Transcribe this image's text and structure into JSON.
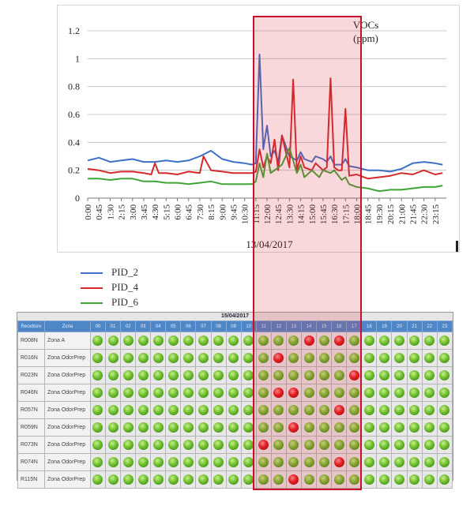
{
  "chart_data": {
    "type": "line",
    "title": "VOCs",
    "title_unit": "(ppm)",
    "xlabel": "13/04/2017",
    "ylabel": "",
    "ylim": [
      0,
      1.2
    ],
    "yticks": [
      "0",
      "0.2",
      "0.4",
      "0.6",
      "0.8",
      "1",
      "1.2"
    ],
    "x_tick_labels": [
      "0:00",
      "0:45",
      "1:30",
      "2:15",
      "3:00",
      "3:45",
      "4:30",
      "5:15",
      "6:00",
      "6:45",
      "7:30",
      "8:15",
      "9:00",
      "9:45",
      "10:30",
      "11:15",
      "12:00",
      "12:45",
      "13:30",
      "14:15",
      "15:00",
      "15:45",
      "16:30",
      "17:15",
      "18:00",
      "18:45",
      "19:30",
      "20:15",
      "21:00",
      "21:45",
      "22:30",
      "23:15"
    ],
    "grid": "horizontal",
    "legend_position": "bottom-left",
    "highlight_range": [
      "11:15",
      "18:00"
    ],
    "series": [
      {
        "name": "PID_2",
        "color": "#3f6fc4",
        "x": [
          "0:00",
          "0:45",
          "1:30",
          "2:15",
          "3:00",
          "3:45",
          "4:30",
          "5:15",
          "6:00",
          "6:45",
          "7:30",
          "8:15",
          "9:00",
          "9:45",
          "10:30",
          "11:00",
          "11:15",
          "11:30",
          "11:45",
          "12:00",
          "12:15",
          "12:30",
          "12:45",
          "13:00",
          "13:30",
          "14:00",
          "14:15",
          "14:30",
          "15:00",
          "15:15",
          "15:45",
          "16:00",
          "16:15",
          "16:30",
          "17:00",
          "17:15",
          "17:30",
          "18:00",
          "18:45",
          "19:30",
          "20:15",
          "21:00",
          "21:45",
          "22:30",
          "23:15",
          "23:45"
        ],
        "values": [
          0.27,
          0.29,
          0.26,
          0.27,
          0.28,
          0.26,
          0.26,
          0.27,
          0.26,
          0.27,
          0.3,
          0.34,
          0.28,
          0.26,
          0.25,
          0.24,
          0.25,
          1.03,
          0.35,
          0.52,
          0.3,
          0.34,
          0.26,
          0.45,
          0.3,
          0.27,
          0.33,
          0.28,
          0.26,
          0.3,
          0.28,
          0.26,
          0.3,
          0.24,
          0.24,
          0.28,
          0.23,
          0.22,
          0.2,
          0.2,
          0.19,
          0.21,
          0.25,
          0.26,
          0.25,
          0.24
        ]
      },
      {
        "name": "PID_4",
        "color": "#d42a2a",
        "x": [
          "0:00",
          "0:45",
          "1:30",
          "2:15",
          "3:00",
          "3:45",
          "4:15",
          "4:30",
          "4:45",
          "5:15",
          "6:00",
          "6:45",
          "7:30",
          "7:45",
          "8:15",
          "9:00",
          "9:45",
          "10:30",
          "11:00",
          "11:15",
          "11:30",
          "11:45",
          "12:00",
          "12:15",
          "12:30",
          "12:45",
          "13:00",
          "13:30",
          "13:45",
          "14:00",
          "14:15",
          "14:30",
          "15:00",
          "15:15",
          "15:45",
          "16:00",
          "16:15",
          "16:30",
          "16:45",
          "17:00",
          "17:15",
          "17:30",
          "18:00",
          "18:45",
          "19:30",
          "20:15",
          "21:00",
          "21:45",
          "22:30",
          "23:15",
          "23:45"
        ],
        "values": [
          0.21,
          0.2,
          0.18,
          0.19,
          0.19,
          0.18,
          0.17,
          0.25,
          0.18,
          0.18,
          0.17,
          0.19,
          0.18,
          0.3,
          0.2,
          0.19,
          0.18,
          0.18,
          0.18,
          0.19,
          0.35,
          0.22,
          0.3,
          0.25,
          0.42,
          0.2,
          0.45,
          0.22,
          0.85,
          0.2,
          0.3,
          0.22,
          0.2,
          0.25,
          0.2,
          0.22,
          0.86,
          0.22,
          0.2,
          0.2,
          0.64,
          0.16,
          0.17,
          0.14,
          0.15,
          0.16,
          0.18,
          0.17,
          0.2,
          0.17,
          0.18
        ]
      },
      {
        "name": "PID_6",
        "color": "#3fa535",
        "x": [
          "0:00",
          "0:45",
          "1:30",
          "2:15",
          "3:00",
          "3:45",
          "4:30",
          "5:15",
          "6:00",
          "6:45",
          "7:30",
          "8:15",
          "9:00",
          "9:45",
          "10:30",
          "11:00",
          "11:15",
          "11:30",
          "11:45",
          "12:00",
          "12:15",
          "12:30",
          "13:00",
          "13:30",
          "14:00",
          "14:15",
          "14:30",
          "15:00",
          "15:30",
          "15:45",
          "16:15",
          "16:30",
          "17:00",
          "17:15",
          "17:30",
          "18:00",
          "18:45",
          "19:30",
          "20:15",
          "21:00",
          "21:45",
          "22:30",
          "23:15",
          "23:45"
        ],
        "values": [
          0.14,
          0.14,
          0.13,
          0.14,
          0.14,
          0.12,
          0.12,
          0.11,
          0.11,
          0.1,
          0.11,
          0.12,
          0.1,
          0.1,
          0.1,
          0.1,
          0.12,
          0.25,
          0.15,
          0.32,
          0.18,
          0.2,
          0.24,
          0.36,
          0.18,
          0.24,
          0.15,
          0.2,
          0.15,
          0.2,
          0.18,
          0.2,
          0.13,
          0.15,
          0.1,
          0.08,
          0.07,
          0.05,
          0.06,
          0.06,
          0.07,
          0.08,
          0.08,
          0.09
        ]
      }
    ]
  },
  "status_grid": {
    "date": "15/04/2017",
    "headers": [
      "Recettore",
      "Zona"
    ],
    "hours": [
      "00",
      "01",
      "02",
      "03",
      "04",
      "05",
      "06",
      "07",
      "08",
      "09",
      "10",
      "11",
      "12",
      "13",
      "14",
      "15",
      "16",
      "17",
      "18",
      "19",
      "20",
      "21",
      "22",
      "23"
    ],
    "rows": [
      {
        "id": "R008N",
        "zone": "Zona A",
        "alarms": [
          14,
          16
        ]
      },
      {
        "id": "R016N",
        "zone": "Zona OdorPrep",
        "alarms": [
          12
        ]
      },
      {
        "id": "R023N",
        "zone": "Zona OdorPrep",
        "alarms": [
          17
        ]
      },
      {
        "id": "R046N",
        "zone": "Zona OdorPrep",
        "alarms": [
          12,
          13
        ]
      },
      {
        "id": "R057N",
        "zone": "Zona OdorPrep",
        "alarms": [
          16
        ]
      },
      {
        "id": "R059N",
        "zone": "Zona OdorPrep",
        "alarms": [
          13
        ]
      },
      {
        "id": "R073N",
        "zone": "Zona OdorPrep",
        "alarms": [
          11
        ]
      },
      {
        "id": "R074N",
        "zone": "Zona OdorPrep",
        "alarms": [
          16
        ]
      },
      {
        "id": "R115N",
        "zone": "Zona OdorPrep",
        "alarms": [
          13
        ]
      }
    ],
    "ok_color": "#4caf2a",
    "alarm_color": "#e31a1a"
  },
  "highlight_color": "#c8102e"
}
